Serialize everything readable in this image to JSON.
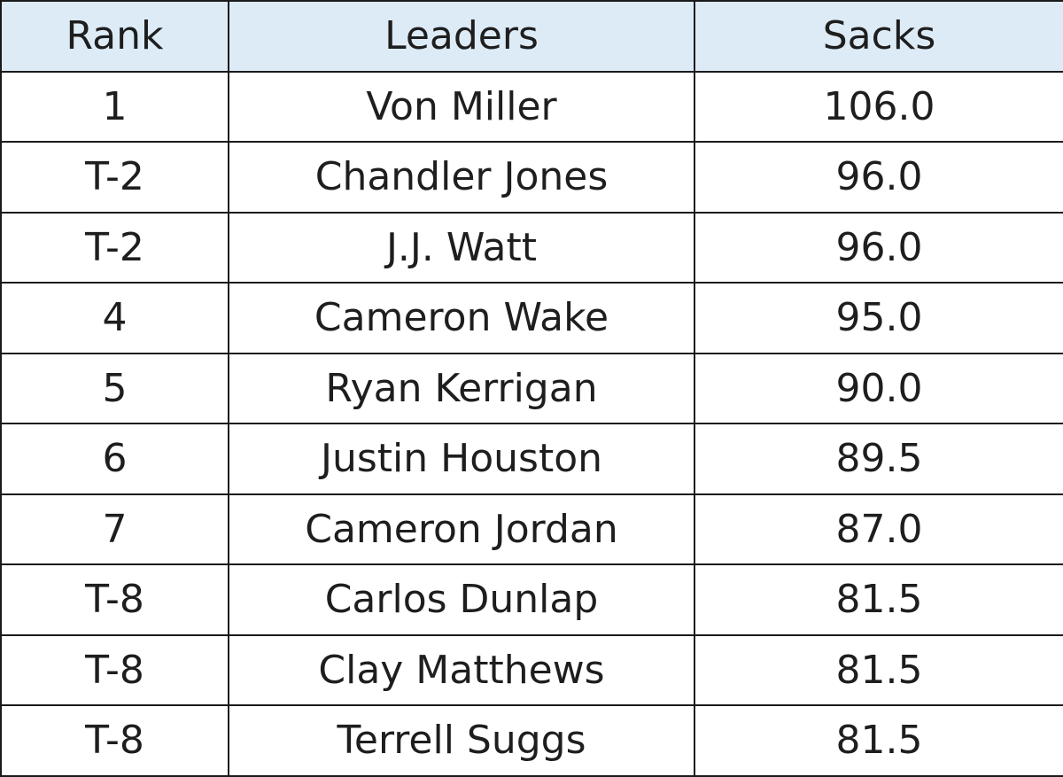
{
  "table": {
    "header": [
      "Rank",
      "Leaders",
      "Sacks"
    ],
    "rows": [
      [
        "1",
        "Von Miller",
        "106.0"
      ],
      [
        "T-2",
        "Chandler Jones",
        "96.0"
      ],
      [
        "T-2",
        "J.J. Watt",
        "96.0"
      ],
      [
        "4",
        "Cameron Wake",
        "95.0"
      ],
      [
        "5",
        "Ryan Kerrigan",
        "90.0"
      ],
      [
        "6",
        "Justin Houston",
        "89.5"
      ],
      [
        "7",
        "Cameron Jordan",
        "87.0"
      ],
      [
        "T-8",
        "Carlos Dunlap",
        "81.5"
      ],
      [
        "T-8",
        "Clay Matthews",
        "81.5"
      ],
      [
        "T-8",
        "Terrell Suggs",
        "81.5"
      ]
    ]
  }
}
